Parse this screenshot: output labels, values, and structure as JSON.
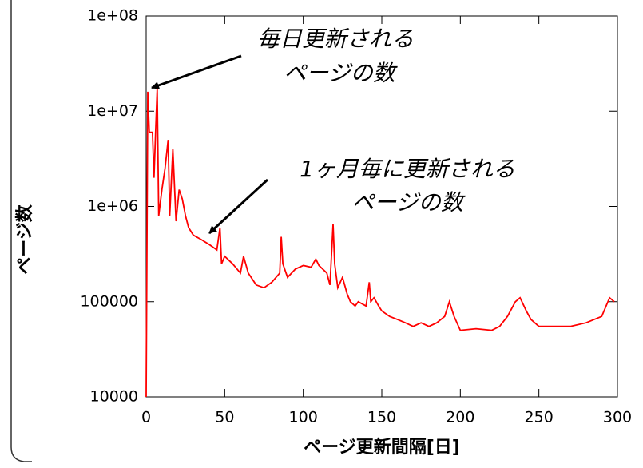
{
  "chart_data": {
    "type": "line",
    "log_y": true,
    "x_label": "ページ更新間隔[日]",
    "y_label": "ページ数",
    "annotations": [
      {
        "lines": [
          "毎日更新される",
          "ページの数"
        ]
      },
      {
        "lines": [
          "1ヶ月毎に更新される",
          "ページの数"
        ]
      }
    ],
    "xlim": [
      0,
      300
    ],
    "xticks": [
      0,
      50,
      100,
      150,
      200,
      250,
      300
    ],
    "ylim": [
      10000,
      100000000
    ],
    "yticks": [
      10000,
      100000,
      {
        "value": 1000000,
        "label": "1e+06"
      },
      {
        "value": 10000000,
        "label": "1e+07"
      },
      {
        "value": 100000000,
        "label": "1e+08"
      }
    ],
    "series": [
      {
        "color": "#ff0000",
        "x": [
          0,
          1,
          2,
          4,
          5,
          6,
          7,
          8,
          10,
          12,
          14,
          15,
          17,
          19,
          21,
          23,
          25,
          27,
          30,
          35,
          40,
          45,
          47,
          48,
          50,
          55,
          60,
          62,
          65,
          70,
          75,
          80,
          85,
          86,
          87,
          90,
          95,
          100,
          105,
          108,
          110,
          115,
          117,
          119,
          120,
          122,
          125,
          128,
          130,
          133,
          135,
          140,
          142,
          143,
          145,
          148,
          150,
          155,
          160,
          165,
          170,
          175,
          180,
          185,
          190,
          193,
          196,
          200,
          210,
          220,
          225,
          230,
          235,
          238,
          242,
          245,
          250,
          260,
          270,
          280,
          290,
          295,
          298
        ],
        "values": [
          10000,
          16000000,
          6000000,
          6000000,
          2000000,
          6000000,
          17000000,
          800000,
          1500000,
          2500000,
          5000000,
          800000,
          4000000,
          700000,
          1500000,
          1200000,
          800000,
          600000,
          500000,
          450000,
          400000,
          350000,
          600000,
          250000,
          300000,
          250000,
          200000,
          300000,
          200000,
          150000,
          140000,
          160000,
          200000,
          480000,
          250000,
          180000,
          220000,
          240000,
          230000,
          280000,
          240000,
          200000,
          150000,
          650000,
          250000,
          140000,
          180000,
          120000,
          100000,
          90000,
          100000,
          90000,
          160000,
          100000,
          110000,
          90000,
          80000,
          70000,
          65000,
          60000,
          55000,
          60000,
          55000,
          60000,
          70000,
          100000,
          70000,
          50000,
          52000,
          50000,
          55000,
          70000,
          100000,
          110000,
          80000,
          65000,
          55000,
          55000,
          55000,
          60000,
          70000,
          110000,
          100000
        ]
      }
    ]
  }
}
